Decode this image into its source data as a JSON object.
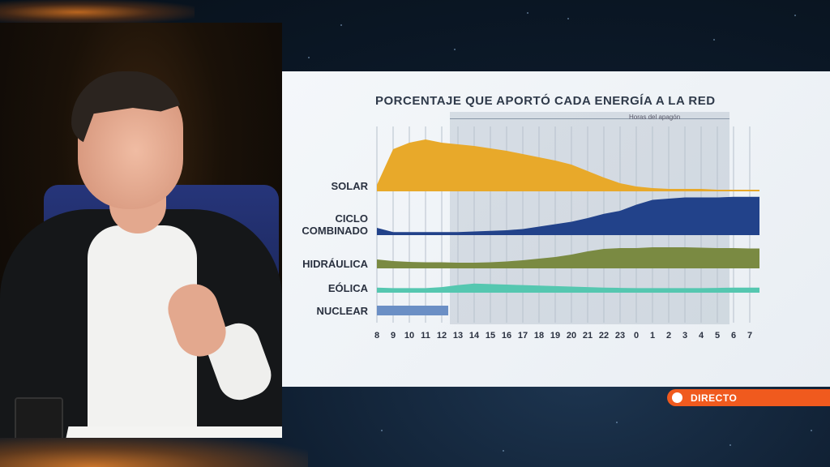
{
  "broadcast": {
    "live_badge": "DIRECTO"
  },
  "chart_data": {
    "type": "area",
    "title": "PORCENTAJE QUE APORTÓ CADA ENERGÍA A LA RED",
    "annotation": "Horas del apagón",
    "x": [
      "8",
      "9",
      "10",
      "11",
      "12",
      "13",
      "14",
      "15",
      "16",
      "17",
      "18",
      "19",
      "20",
      "21",
      "22",
      "23",
      "0",
      "1",
      "2",
      "3",
      "4",
      "5",
      "6",
      "7"
    ],
    "highlight_range": [
      "12.5",
      "6"
    ],
    "series": [
      {
        "name": "SOLAR",
        "color": "#e8a92a",
        "values": [
          8,
          52,
          60,
          64,
          60,
          58,
          56,
          53,
          50,
          46,
          42,
          38,
          33,
          25,
          17,
          10,
          6,
          4,
          3,
          3,
          3,
          2,
          2,
          2
        ]
      },
      {
        "name": "CICLO\nCOMBINADO",
        "color": "#22428a",
        "values": [
          12,
          5,
          5,
          5,
          5,
          5,
          6,
          7,
          8,
          10,
          14,
          18,
          22,
          28,
          35,
          40,
          50,
          58,
          60,
          62,
          62,
          62,
          63,
          63
        ]
      },
      {
        "name": "HIDRÁULICA",
        "color": "#7a8a42",
        "values": [
          22,
          18,
          16,
          15,
          15,
          14,
          14,
          15,
          17,
          20,
          24,
          28,
          34,
          42,
          48,
          50,
          50,
          52,
          52,
          52,
          51,
          50,
          50,
          49
        ]
      },
      {
        "name": "EÓLICA",
        "color": "#55c7b0",
        "values": [
          20,
          18,
          18,
          18,
          22,
          30,
          36,
          34,
          32,
          30,
          28,
          26,
          24,
          22,
          20,
          19,
          18,
          18,
          18,
          18,
          18,
          19,
          20,
          20
        ]
      },
      {
        "name": "NUCLEAR",
        "color": "#6b8fc5",
        "values": [
          40,
          40,
          40,
          40,
          40,
          0,
          0,
          0,
          0,
          0,
          0,
          0,
          0,
          0,
          0,
          0,
          0,
          0,
          0,
          0,
          0,
          0,
          0,
          0
        ]
      }
    ],
    "legend": "left"
  }
}
